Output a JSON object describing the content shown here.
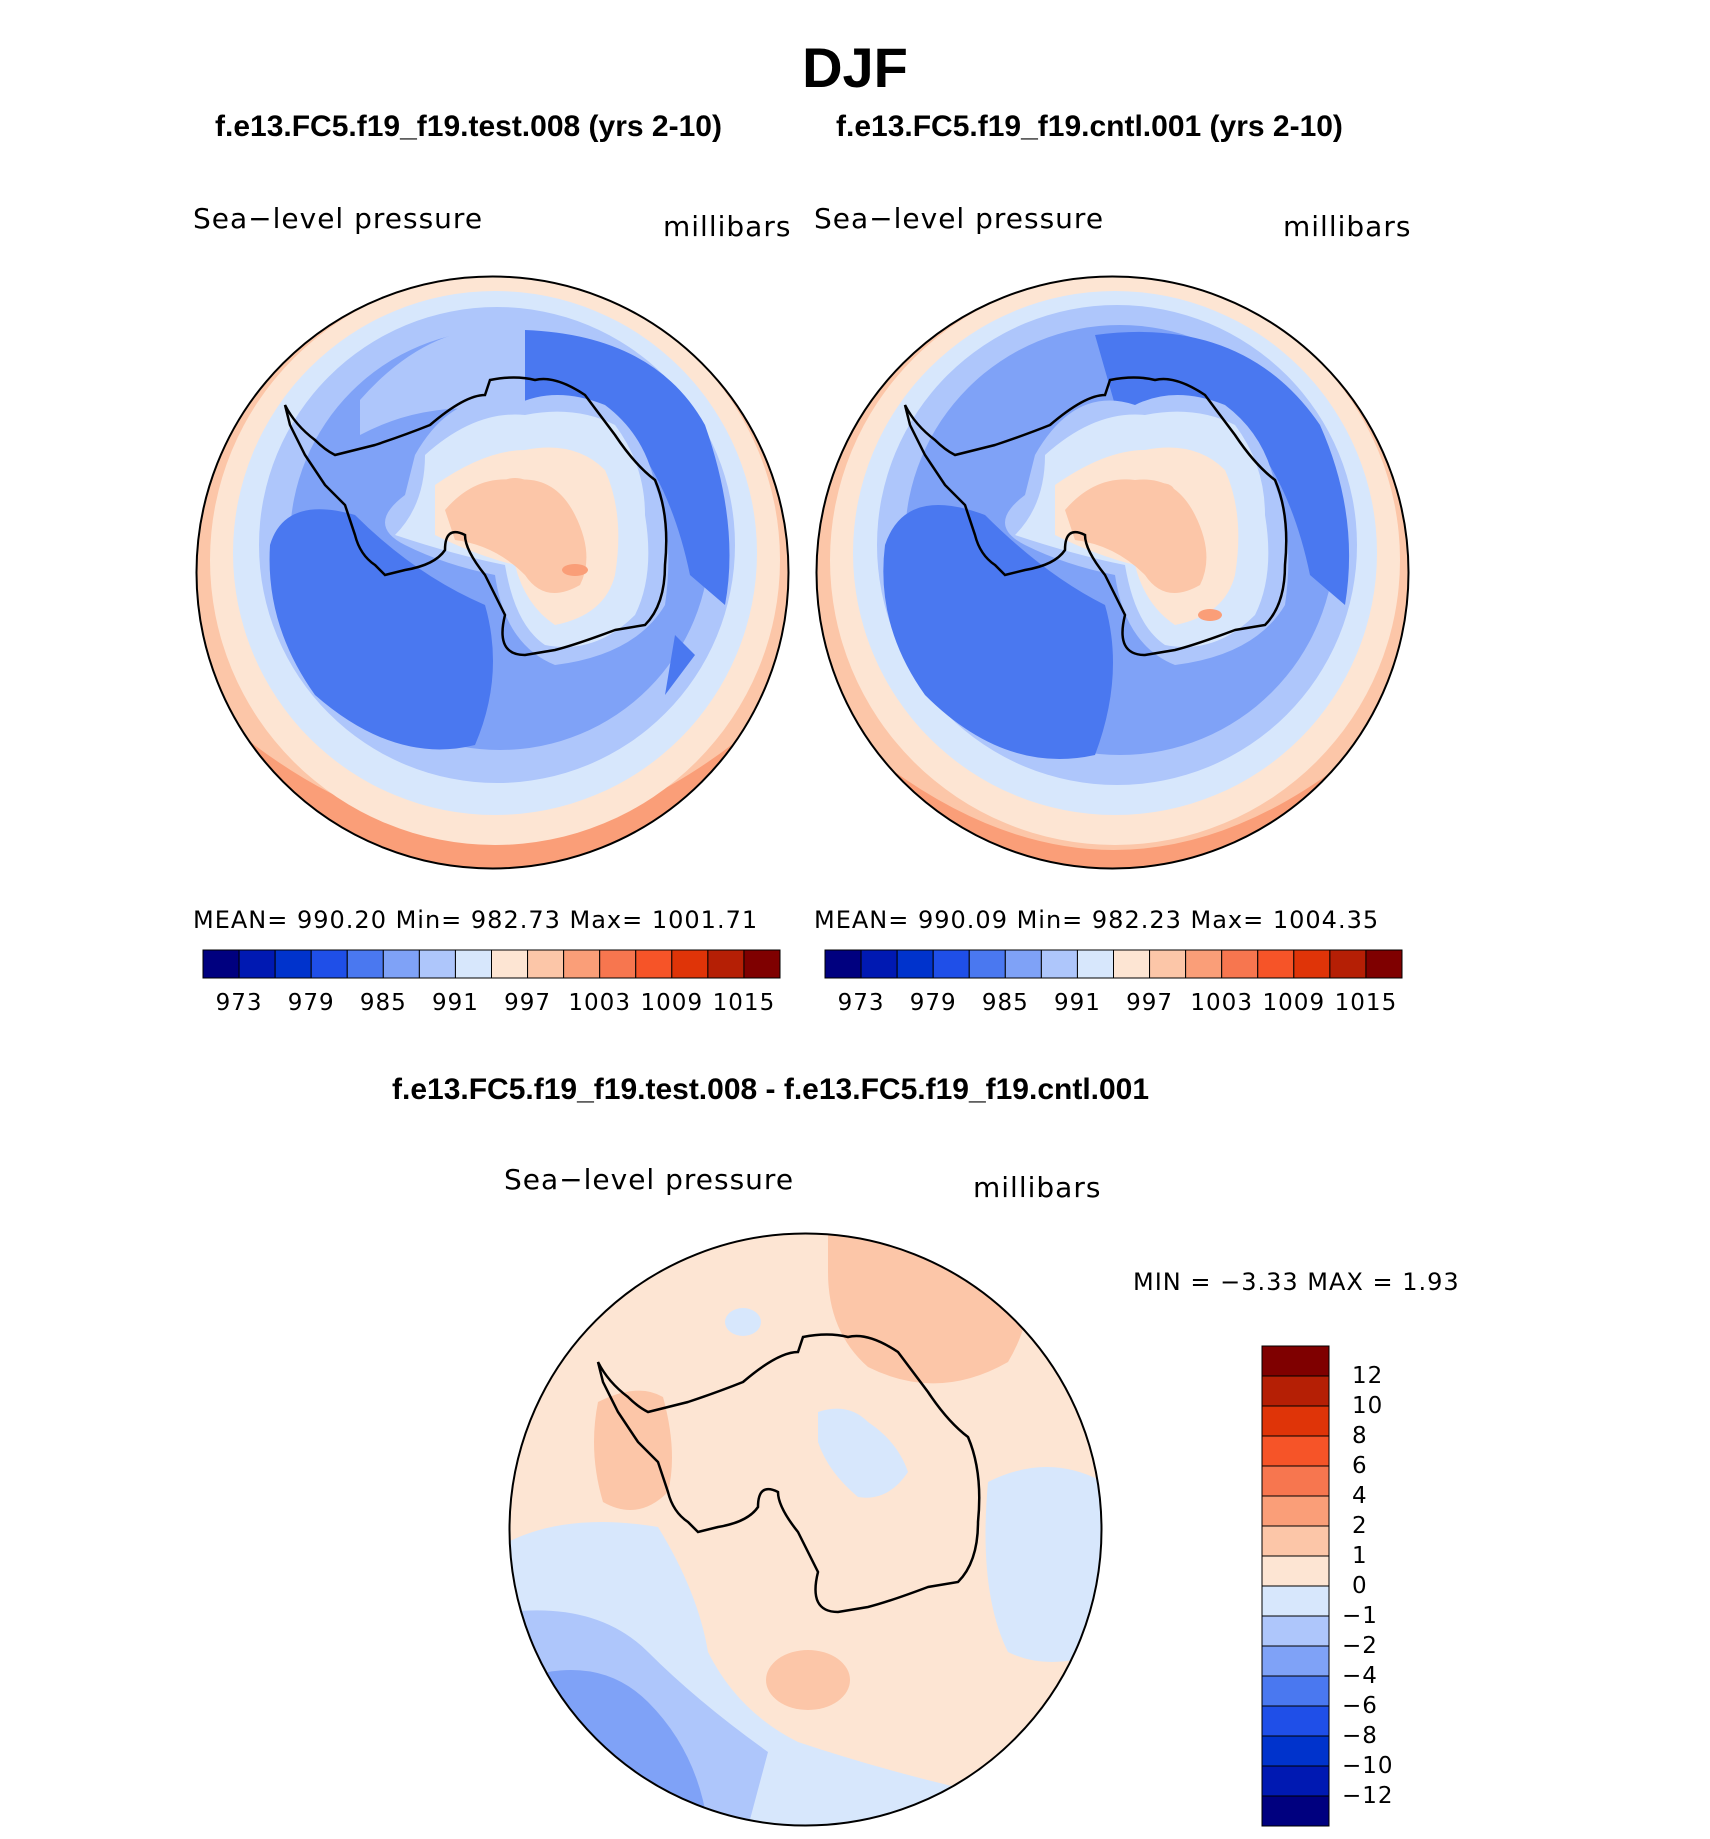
{
  "title": "DJF",
  "panels": [
    {
      "case_title": "f.e13.FC5.f19_f19.test.008 (yrs 2-10)",
      "variable": "Sea−level pressure",
      "units": "millibars",
      "stats_text": "MEAN=  990.20   Min=  982.73   Max=  1001.71"
    },
    {
      "case_title": "f.e13.FC5.f19_f19.cntl.001 (yrs 2-10)",
      "variable": "Sea−level pressure",
      "units": "millibars",
      "stats_text": "MEAN=  990.09   Min=  982.23   Max=  1004.35"
    },
    {
      "case_title": "f.e13.FC5.f19_f19.test.008 - f.e13.FC5.f19_f19.cntl.001",
      "variable": "Sea−level pressure",
      "units": "millibars",
      "stats_text": "MIN =    −3.33  MAX =      1.93"
    }
  ],
  "colorbar_abs": {
    "labels": [
      "973",
      "979",
      "985",
      "991",
      "997",
      "1003",
      "1009",
      "1015"
    ],
    "colors": [
      "#00007f",
      "#0019b2",
      "#0033cc",
      "#1f4fe8",
      "#4a78f0",
      "#7fa2f7",
      "#aec6fb",
      "#d7e7fc",
      "#fde5d3",
      "#fcc6a8",
      "#fa9e78",
      "#f7764f",
      "#f65428",
      "#df3408",
      "#b51f05",
      "#7f0000"
    ]
  },
  "colorbar_diff": {
    "labels": [
      "12",
      "10",
      "8",
      "6",
      "4",
      "2",
      "1",
      "0",
      "−1",
      "−2",
      "−4",
      "−6",
      "−8",
      "−10",
      "−12"
    ],
    "colors": [
      "#7f0000",
      "#b51f05",
      "#df3408",
      "#f65428",
      "#f7764f",
      "#fa9e78",
      "#fcc6a8",
      "#fde5d3",
      "#d7e7fc",
      "#aec6fb",
      "#7fa2f7",
      "#4a78f0",
      "#1f4fe8",
      "#0033cc",
      "#0019b2",
      "#00007f"
    ]
  }
}
